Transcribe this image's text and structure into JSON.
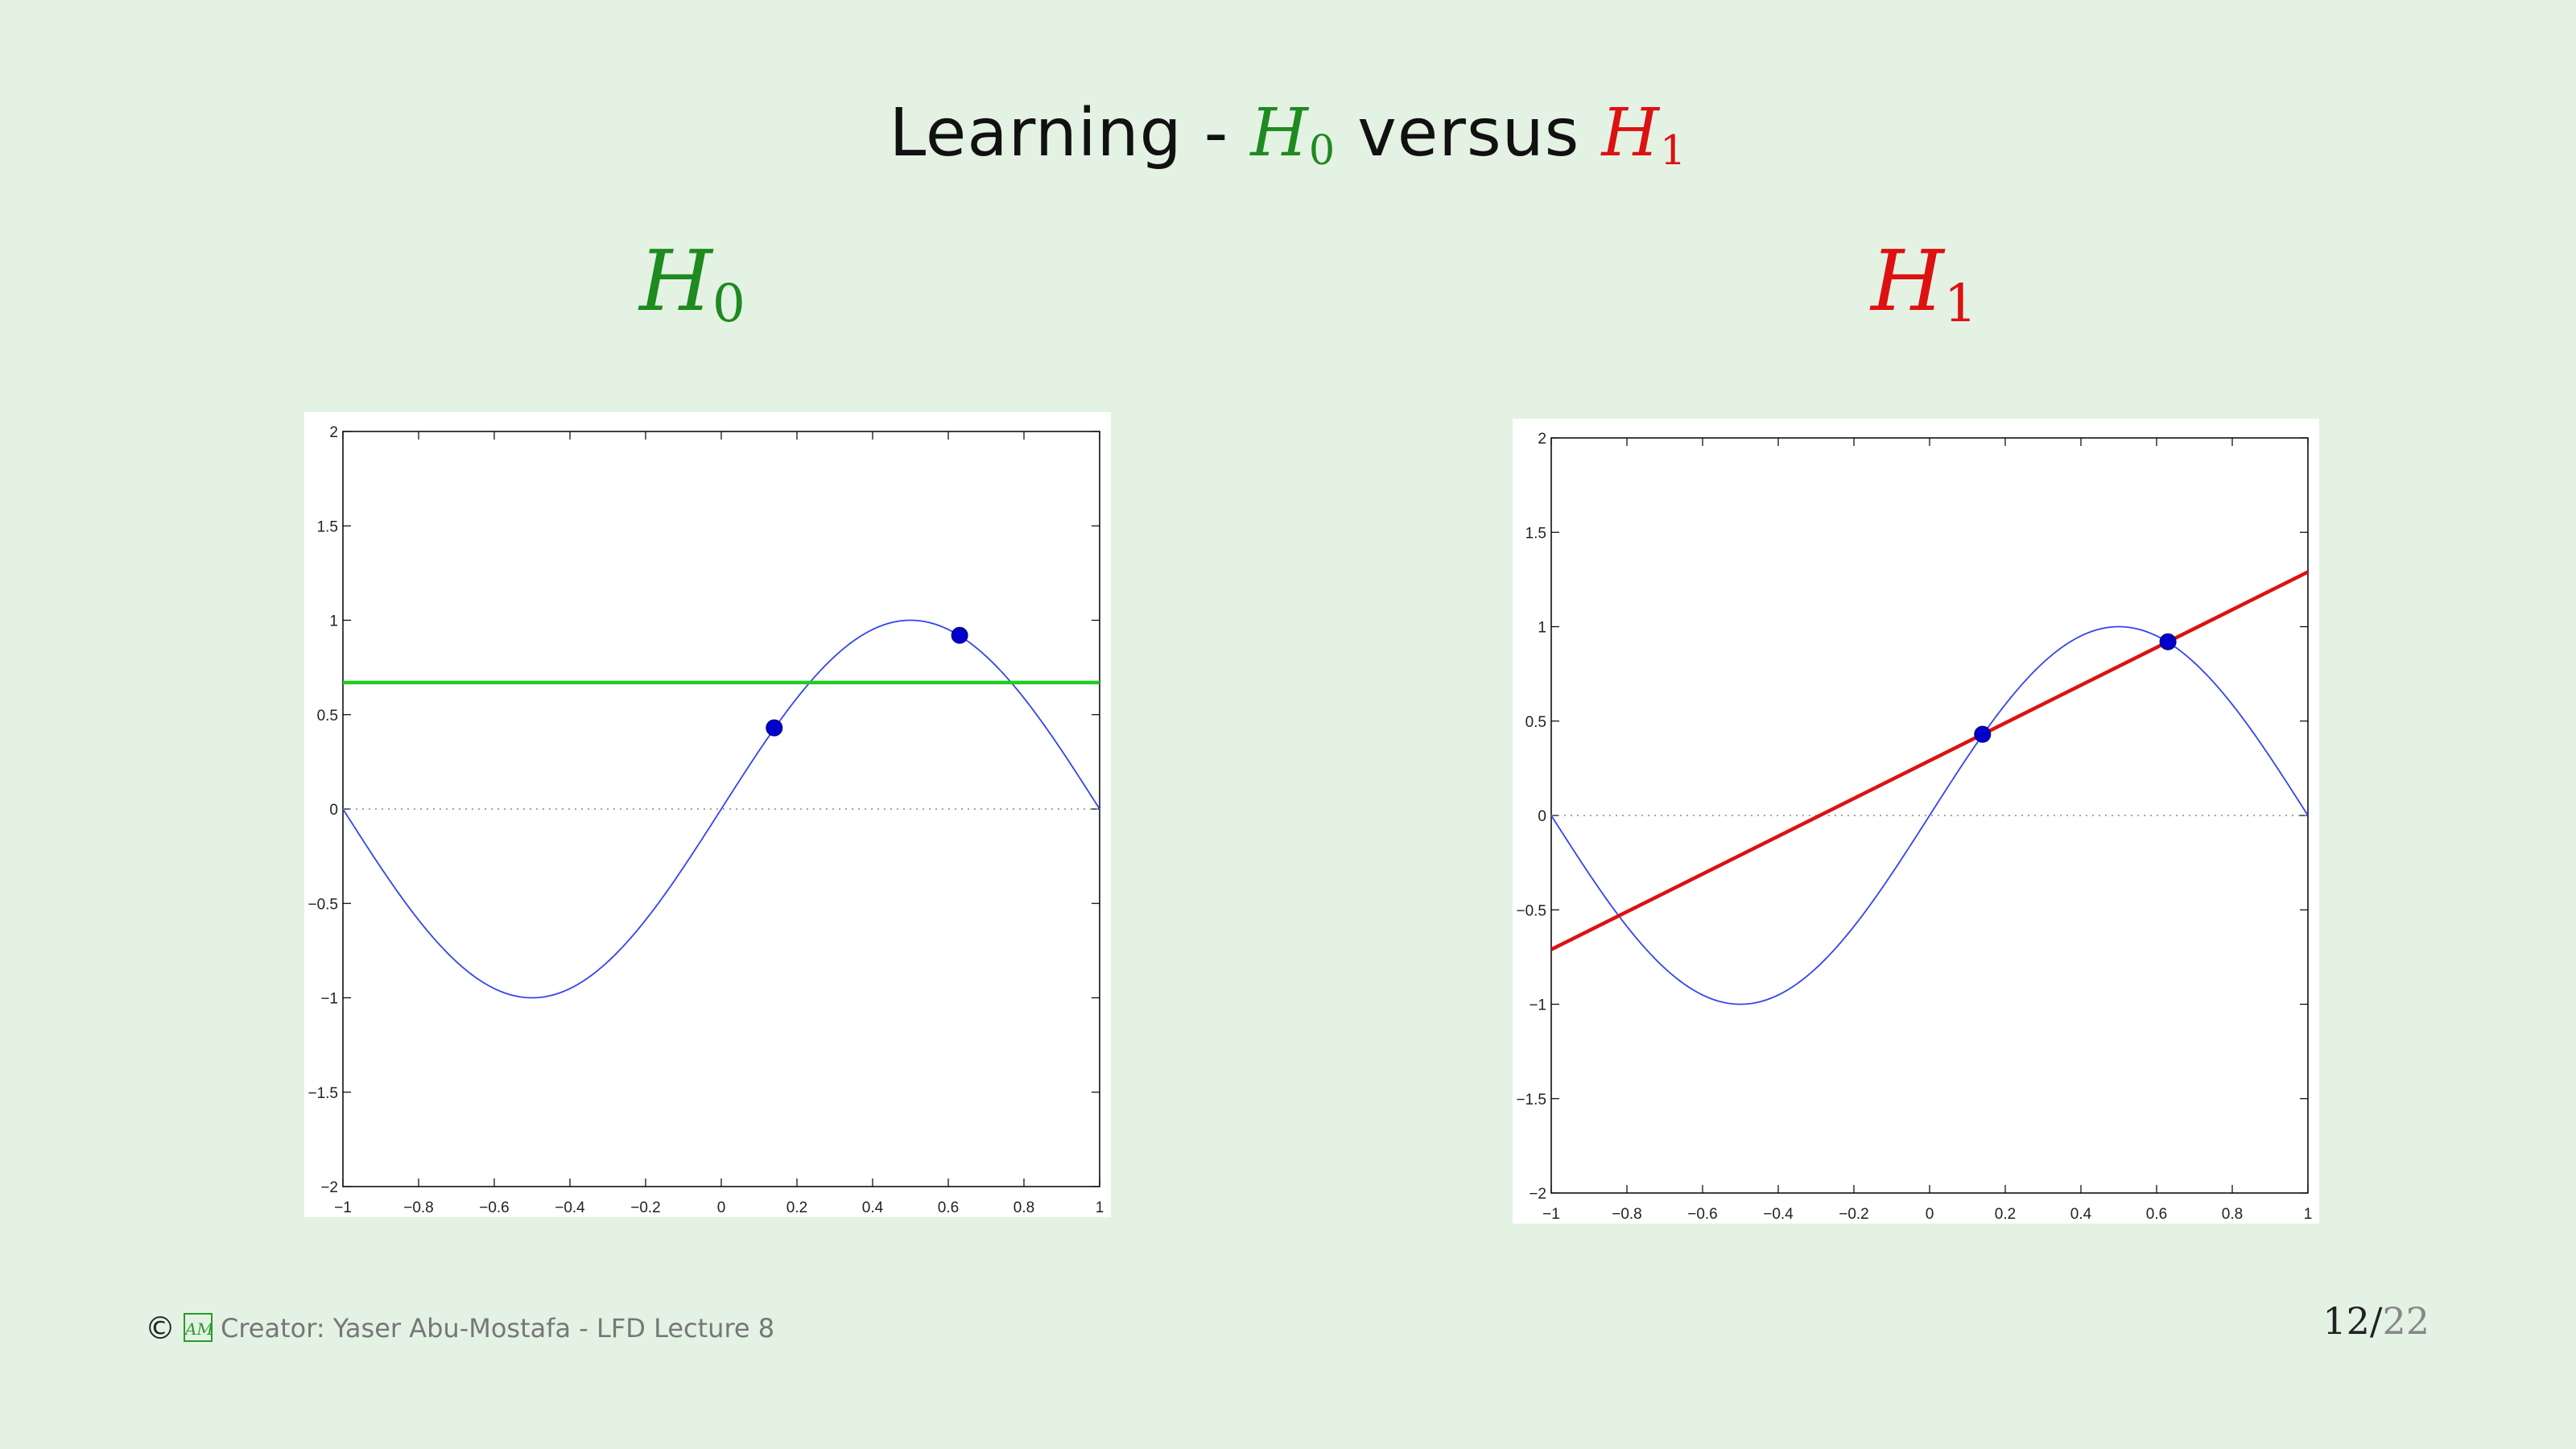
{
  "slide": {
    "title_prefix": "Learning - ",
    "title_h0": "H",
    "title_h0_sub": "0",
    "title_mid": " versus ",
    "title_h1": "H",
    "title_h1_sub": "1"
  },
  "panels": {
    "left": {
      "heading": "H",
      "heading_sub": "0"
    },
    "right": {
      "heading": "H",
      "heading_sub": "1"
    }
  },
  "footer": {
    "copyright_icon": "©",
    "logo_icon": "AML",
    "creator": "Creator: Yaser Abu-Mostafa - LFD Lecture 8"
  },
  "page": {
    "current": "12",
    "separator": "/",
    "total": "22"
  },
  "colors": {
    "background": "#e4f2e4",
    "h0": "#1f8a1f",
    "h1": "#dd1111",
    "target_curve": "#3344ee",
    "points": "#0000cc",
    "h0_line": "#22cc22",
    "h1_line": "#dd1111"
  },
  "chart_data": [
    {
      "type": "line",
      "xlim": [
        -1,
        1
      ],
      "ylim": [
        -2,
        2
      ],
      "x_ticks": [
        "−1",
        "−0.8",
        "−0.6",
        "−0.4",
        "−0.2",
        "0",
        "0.2",
        "0.4",
        "0.6",
        "0.8",
        "1"
      ],
      "y_ticks": [
        "−2",
        "−1.5",
        "−1",
        "−0.5",
        "0",
        "0.5",
        "1",
        "1.5",
        "2"
      ],
      "x_tick_values": [
        -1,
        -0.8,
        -0.6,
        -0.4,
        -0.2,
        0,
        0.2,
        0.4,
        0.6,
        0.8,
        1
      ],
      "y_tick_values": [
        -2,
        -1.5,
        -1,
        -0.5,
        0,
        0.5,
        1,
        1.5,
        2
      ],
      "target": "sin(pi x)",
      "points": [
        {
          "x": 0.14,
          "y": 0.43
        },
        {
          "x": 0.63,
          "y": 0.92
        }
      ],
      "hypothesis": {
        "kind": "constant",
        "b": 0.67
      },
      "zero_line": "dotted"
    },
    {
      "type": "line",
      "xlim": [
        -1,
        1
      ],
      "ylim": [
        -2,
        2
      ],
      "x_ticks": [
        "−1",
        "−0.8",
        "−0.6",
        "−0.4",
        "−0.2",
        "0",
        "0.2",
        "0.4",
        "0.6",
        "0.8",
        "1"
      ],
      "y_ticks": [
        "−2",
        "−1.5",
        "−1",
        "−0.5",
        "0",
        "0.5",
        "1",
        "1.5",
        "2"
      ],
      "x_tick_values": [
        -1,
        -0.8,
        -0.6,
        -0.4,
        -0.2,
        0,
        0.2,
        0.4,
        0.6,
        0.8,
        1
      ],
      "y_tick_values": [
        -2,
        -1.5,
        -1,
        -0.5,
        0,
        0.5,
        1,
        1.5,
        2
      ],
      "target": "sin(pi x)",
      "points": [
        {
          "x": 0.14,
          "y": 0.43
        },
        {
          "x": 0.63,
          "y": 0.92
        }
      ],
      "hypothesis": {
        "kind": "linear",
        "slope": 1.0,
        "intercept": 0.29
      },
      "zero_line": "dotted"
    }
  ]
}
